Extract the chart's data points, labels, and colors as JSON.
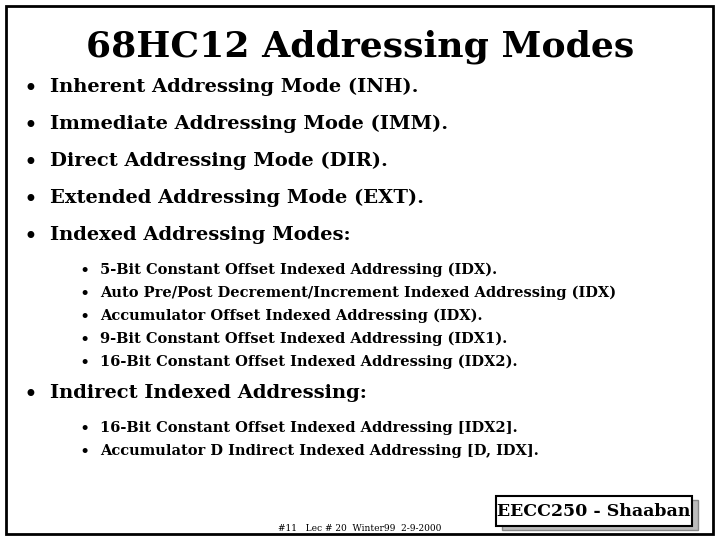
{
  "title": "68HC12 Addressing Modes",
  "background_color": "#ffffff",
  "border_color": "#000000",
  "text_color": "#000000",
  "title_fontsize": 26,
  "bullet_fontsize": 14,
  "sub_bullet_fontsize": 10.5,
  "footer_label": "EECC250 - Shaaban",
  "footer_sub": "#11   Lec # 20  Winter99  2-9-2000",
  "main_bullets": [
    "Inherent Addressing Mode (INH).",
    "Immediate Addressing Mode (IMM).",
    "Direct Addressing Mode (DIR).",
    "Extended Addressing Mode (EXT).",
    "Indexed Addressing Modes:"
  ],
  "sub_bullets_indexed": [
    "5-Bit Constant Offset Indexed Addressing (IDX).",
    "Auto Pre/Post Decrement/Increment Indexed Addressing (IDX)",
    "Accumulator Offset Indexed Addressing (IDX).",
    "9-Bit Constant Offset Indexed Addressing (IDX1).",
    "16-Bit Constant Offset Indexed Addressing (IDX2)."
  ],
  "indirect_bullet": "Indirect Indexed Addressing:",
  "sub_bullets_indirect": [
    "16-Bit Constant Offset Indexed Addressing [IDX2].",
    "Accumulator D Indirect Indexed Addressing [D, IDX]."
  ]
}
